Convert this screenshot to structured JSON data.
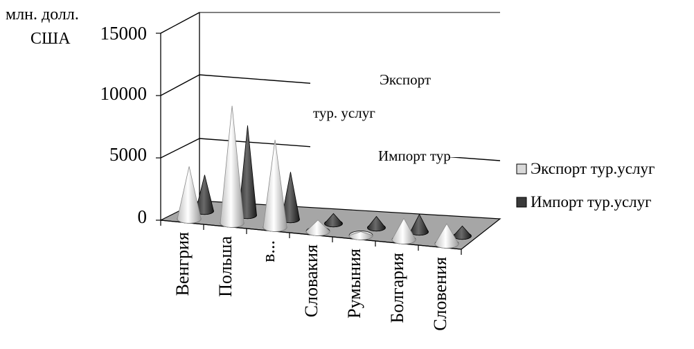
{
  "chart_data": {
    "type": "bar",
    "shape": "cone",
    "three_d": true,
    "categories": [
      "Венгрия",
      "Польша",
      "в...",
      "Словакия",
      "Румыния",
      "Болгария",
      "Словения"
    ],
    "series": [
      {
        "name": "Экспорт тур.услуг",
        "values": [
          4200,
          9400,
          7000,
          900,
          300,
          1700,
          1600
        ],
        "color": "#d9d9d9"
      },
      {
        "name": "Импорт тур.услуг",
        "values": [
          2900,
          7200,
          3800,
          800,
          900,
          1400,
          800
        ],
        "color": "#3a3a3a"
      }
    ],
    "ylim": [
      0,
      15000
    ],
    "yticks": [
      "0",
      "5000",
      "10000",
      "15000"
    ],
    "ylabel": "млн. долл. США",
    "legend_position": "right",
    "grid": true,
    "annotations": [
      "Экспорт",
      "тур. услуг",
      "Импорт тур"
    ]
  },
  "colors": {
    "floor": "#a6a6a6",
    "wall": "#ffffff",
    "line": "#000000"
  }
}
